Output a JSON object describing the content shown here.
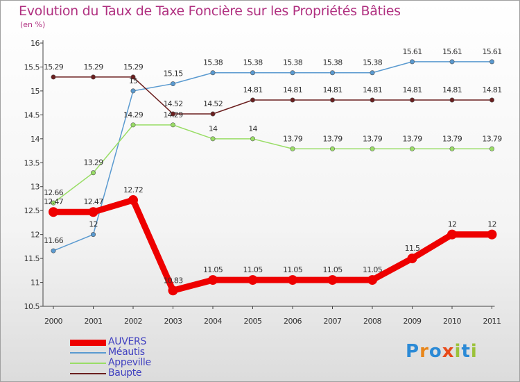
{
  "header": {
    "title": "Evolution du Taux de Taxe Foncière sur les Propriétés Bâties",
    "unit": "(en %)"
  },
  "logo": {
    "text": "Proxiti",
    "letters": [
      "P",
      "r",
      "o",
      "x",
      "i",
      "t",
      "i"
    ],
    "letter_colors": [
      "#2b8ad6",
      "#e8861a",
      "#2b8ad6",
      "#e84a1a",
      "#9bc23a",
      "#2b8ad6",
      "#9bc23a"
    ]
  },
  "chart_data": {
    "type": "line",
    "title": "Evolution du Taux de Taxe Foncière sur les Propriétés Bâties",
    "ylabel": "(en %)",
    "xlabel": "",
    "categories": [
      "2000",
      "2001",
      "2002",
      "2003",
      "2004",
      "2005",
      "2006",
      "2007",
      "2008",
      "2009",
      "2010",
      "2011"
    ],
    "ylim": [
      10.5,
      16
    ],
    "yticks": [
      "10.5",
      "11",
      "11.5",
      "12",
      "12.5",
      "13",
      "13.5",
      "14",
      "14.5",
      "15",
      "15.5",
      "16"
    ],
    "grid": false,
    "legend_position": "bottom-left",
    "series": [
      {
        "name": "AUVERS",
        "color": "#ee0000",
        "emphasis": true,
        "values": [
          12.47,
          12.47,
          12.72,
          10.83,
          11.05,
          11.05,
          11.05,
          11.05,
          11.05,
          11.5,
          12,
          12
        ],
        "labels": [
          "12.47",
          "12.47",
          "12.72",
          "10.83",
          "11.05",
          "11.05",
          "11.05",
          "11.05",
          "11.05",
          "11.5",
          "12",
          "12"
        ]
      },
      {
        "name": "Méautis",
        "color": "#5a9ad0",
        "emphasis": false,
        "values": [
          11.66,
          12,
          15,
          15.15,
          15.38,
          15.38,
          15.38,
          15.38,
          15.38,
          15.61,
          15.61,
          15.61
        ],
        "labels": [
          "11.66",
          "12",
          "15",
          "15.15",
          "15.38",
          "15.38",
          "15.38",
          "15.38",
          "15.38",
          "15.61",
          "15.61",
          "15.61"
        ]
      },
      {
        "name": "Appeville",
        "color": "#99dd66",
        "emphasis": false,
        "values": [
          12.66,
          13.29,
          14.29,
          14.29,
          14,
          14,
          13.79,
          13.79,
          13.79,
          13.79,
          13.79,
          13.79
        ],
        "labels": [
          "12.66",
          "13.29",
          "14.29",
          "14.29",
          "14",
          "14",
          "13.79",
          "13.79",
          "13.79",
          "13.79",
          "13.79",
          "13.79"
        ]
      },
      {
        "name": "Baupte",
        "color": "#6b1f1f",
        "emphasis": false,
        "values": [
          15.29,
          15.29,
          15.29,
          14.52,
          14.52,
          14.81,
          14.81,
          14.81,
          14.81,
          14.81,
          14.81,
          14.81
        ],
        "labels": [
          "15.29",
          "15.29",
          "15.29",
          "14.52",
          "14.52",
          "14.81",
          "14.81",
          "14.81",
          "14.81",
          "14.81",
          "14.81",
          "14.81"
        ]
      }
    ]
  }
}
